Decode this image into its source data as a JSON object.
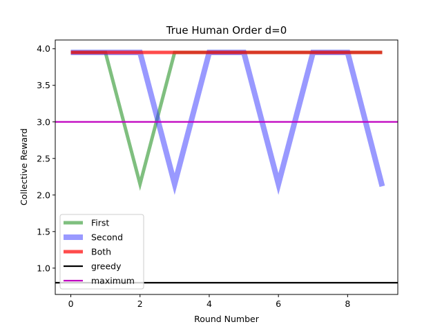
{
  "chart_data": {
    "type": "line",
    "title": "True Human Order d=0",
    "xlabel": "Round Number",
    "ylabel": "Collective Reward",
    "xlim": [
      -0.45,
      9.45
    ],
    "ylim": [
      0.64,
      4.12
    ],
    "xticks": [
      0,
      2,
      4,
      6,
      8
    ],
    "yticks": [
      1.0,
      1.5,
      2.0,
      2.5,
      3.0,
      3.5,
      4.0
    ],
    "ytick_labels": [
      "1.0",
      "1.5",
      "2.0",
      "2.5",
      "3.0",
      "3.5",
      "4.0"
    ],
    "grid": false,
    "legend_position": "lower-left",
    "series": [
      {
        "name": "First",
        "color": "#008000",
        "opacity": 0.5,
        "x": [
          0,
          1,
          2,
          3,
          4,
          5,
          6,
          7,
          8,
          9
        ],
        "values": [
          3.95,
          3.95,
          2.15,
          3.95,
          3.95,
          3.95,
          3.95,
          3.95,
          3.95,
          3.95
        ]
      },
      {
        "name": "Second",
        "color": "#3333ff",
        "opacity": 0.5,
        "x": [
          0,
          1,
          2,
          3,
          4,
          5,
          6,
          7,
          8,
          9
        ],
        "values": [
          3.95,
          3.95,
          3.95,
          2.15,
          3.95,
          3.95,
          2.15,
          3.95,
          3.95,
          2.12
        ]
      },
      {
        "name": "Both",
        "color": "#ff0000",
        "opacity": 0.7,
        "x": [
          0,
          1,
          2,
          3,
          4,
          5,
          6,
          7,
          8,
          9
        ],
        "values": [
          3.95,
          3.95,
          3.95,
          3.95,
          3.95,
          3.95,
          3.95,
          3.95,
          3.95,
          3.95
        ]
      }
    ],
    "hlines": [
      {
        "name": "greedy",
        "value": 0.8,
        "color": "#000000"
      },
      {
        "name": "maximum",
        "value": 3.0,
        "color": "#bf00bf"
      }
    ]
  }
}
